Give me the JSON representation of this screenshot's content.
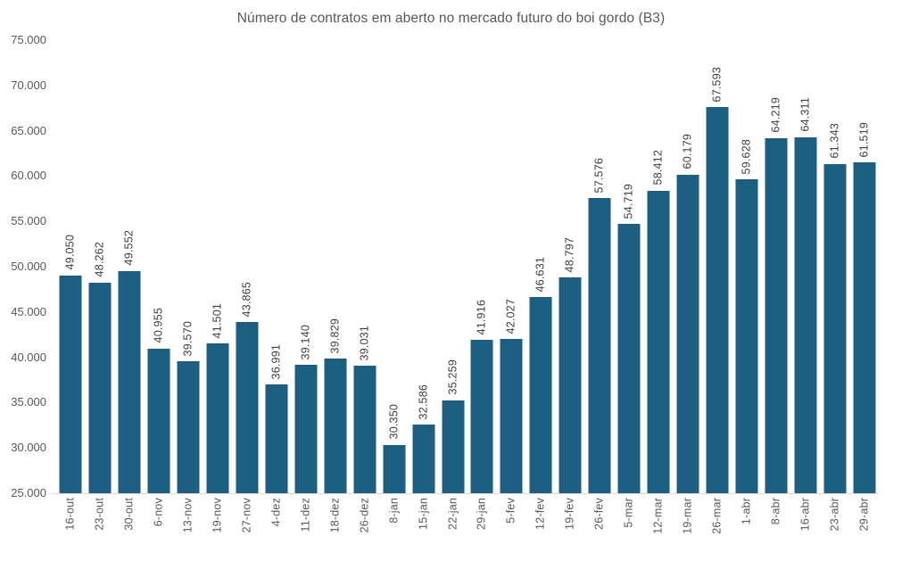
{
  "chart_data": {
    "type": "bar",
    "title": "Número de contratos em aberto no mercado futuro do boi gordo (B3)",
    "categories": [
      "16-out",
      "23-out",
      "30-out",
      "6-nov",
      "13-nov",
      "19-nov",
      "27-nov",
      "4-dez",
      "11-dez",
      "18-dez",
      "26-dez",
      "8-jan",
      "15-jan",
      "22-jan",
      "29-jan",
      "5-fev",
      "12-fev",
      "19-fev",
      "26-fev",
      "5-mar",
      "12-mar",
      "19-mar",
      "26-mar",
      "1-abr",
      "8-abr",
      "16-abr",
      "23-abr",
      "29-abr"
    ],
    "values": [
      49050,
      48262,
      49552,
      40955,
      39570,
      41501,
      43865,
      36991,
      39140,
      39829,
      39031,
      30350,
      32586,
      35259,
      41916,
      42027,
      46631,
      48797,
      57576,
      54719,
      58412,
      60179,
      67593,
      59628,
      64219,
      64311,
      61343,
      61519
    ],
    "value_labels": [
      "49.050",
      "48.262",
      "49.552",
      "40.955",
      "39.570",
      "41.501",
      "43.865",
      "36.991",
      "39.140",
      "39.829",
      "39.031",
      "30.350",
      "32.586",
      "35.259",
      "41.916",
      "42.027",
      "46.631",
      "48.797",
      "57.576",
      "54.719",
      "58.412",
      "60.179",
      "67.593",
      "59.628",
      "64.219",
      "64.311",
      "61.343",
      "61.519"
    ],
    "xlabel": "",
    "ylabel": "",
    "ylim": [
      25000,
      75000
    ],
    "yticks": [
      75000,
      70000,
      65000,
      60000,
      55000,
      50000,
      45000,
      40000,
      35000,
      30000,
      25000
    ],
    "ytick_labels": [
      "75.000",
      "70.000",
      "65.000",
      "60.000",
      "55.000",
      "50.000",
      "45.000",
      "40.000",
      "35.000",
      "30.000",
      "25.000"
    ],
    "grid": false,
    "legend": false,
    "bar_color": "#1d5f80",
    "axis_line_color": "#d9d9d9",
    "title_color": "#595959",
    "tick_label_color": "#595959",
    "value_label_color": "#3f3f3f",
    "background": "#ffffff"
  }
}
